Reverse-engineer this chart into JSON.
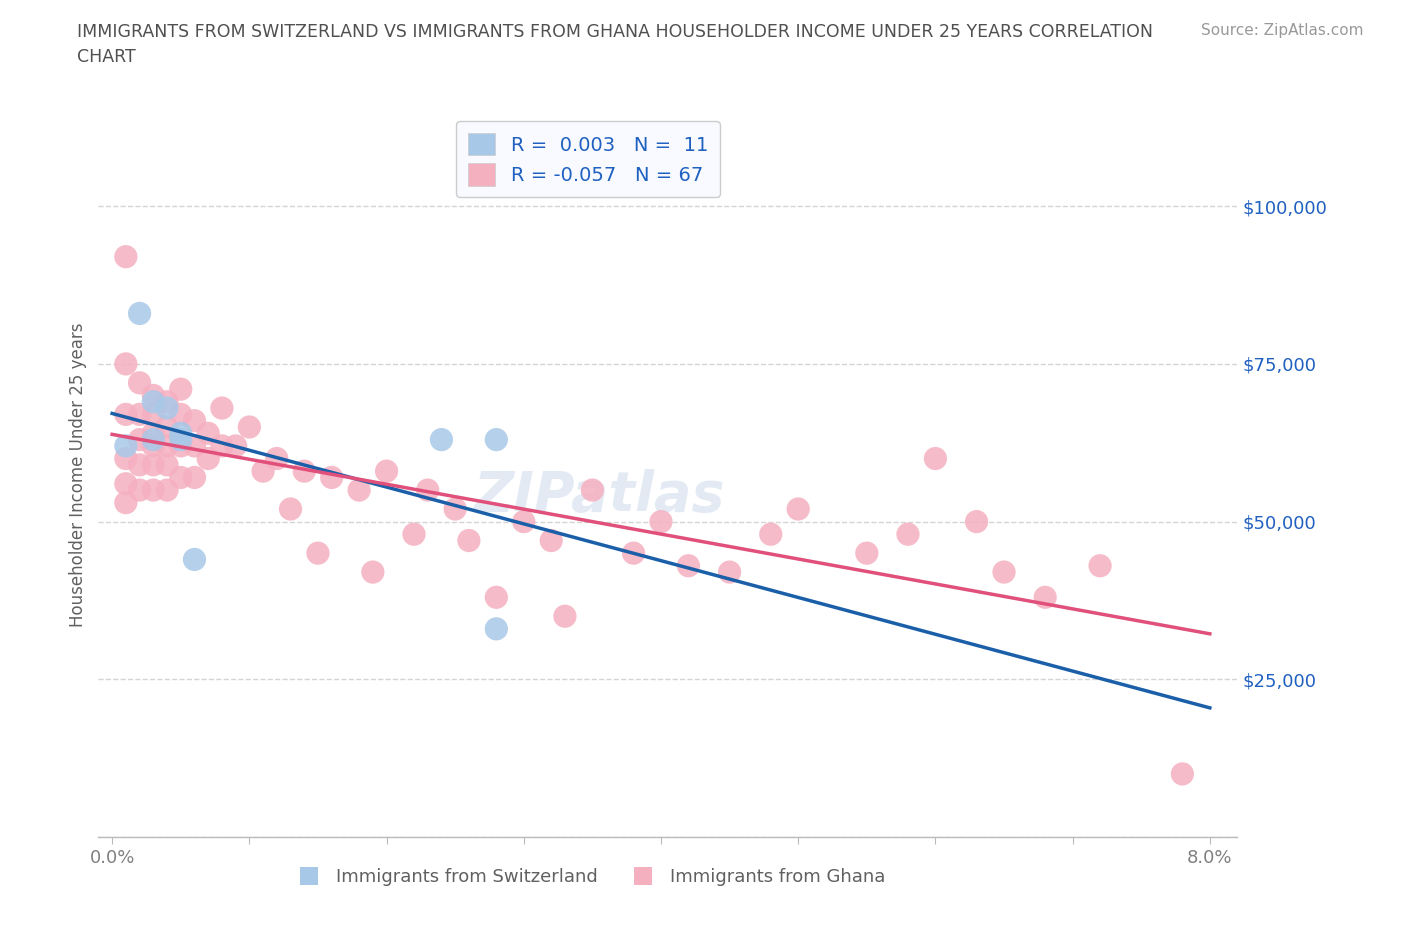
{
  "title_line1": "IMMIGRANTS FROM SWITZERLAND VS IMMIGRANTS FROM GHANA HOUSEHOLDER INCOME UNDER 25 YEARS CORRELATION",
  "title_line2": "CHART",
  "source": "Source: ZipAtlas.com",
  "ylabel": "Householder Income Under 25 years",
  "xlim": [
    -0.001,
    0.082
  ],
  "ylim": [
    0,
    115000
  ],
  "yticks": [
    0,
    25000,
    50000,
    75000,
    100000
  ],
  "ytick_labels": [
    "",
    "$25,000",
    "$50,000",
    "$75,000",
    "$100,000"
  ],
  "xticks": [
    0.0,
    0.01,
    0.02,
    0.03,
    0.04,
    0.05,
    0.06,
    0.07,
    0.08
  ],
  "xtick_labels": [
    "0.0%",
    "",
    "",
    "",
    "",
    "",
    "",
    "",
    "8.0%"
  ],
  "switzerland_color": "#a8c8e8",
  "ghana_color": "#f5b0c0",
  "switzerland_line_color": "#1a5fa8",
  "ghana_line_color": "#e0507a",
  "R_switzerland": 0.003,
  "N_switzerland": 11,
  "R_ghana": -0.057,
  "N_ghana": 67,
  "switzerland_x": [
    0.001,
    0.002,
    0.003,
    0.003,
    0.004,
    0.005,
    0.005,
    0.006,
    0.024,
    0.028,
    0.028
  ],
  "switzerland_y": [
    62000,
    83000,
    69000,
    63000,
    68000,
    64000,
    63000,
    44000,
    63000,
    63000,
    33000
  ],
  "ghana_x": [
    0.001,
    0.001,
    0.001,
    0.001,
    0.001,
    0.001,
    0.002,
    0.002,
    0.002,
    0.002,
    0.002,
    0.003,
    0.003,
    0.003,
    0.003,
    0.003,
    0.003,
    0.004,
    0.004,
    0.004,
    0.004,
    0.004,
    0.005,
    0.005,
    0.005,
    0.005,
    0.006,
    0.006,
    0.006,
    0.007,
    0.007,
    0.008,
    0.008,
    0.009,
    0.01,
    0.011,
    0.012,
    0.013,
    0.014,
    0.015,
    0.016,
    0.018,
    0.019,
    0.02,
    0.022,
    0.023,
    0.025,
    0.026,
    0.028,
    0.03,
    0.032,
    0.033,
    0.035,
    0.038,
    0.04,
    0.042,
    0.045,
    0.048,
    0.05,
    0.055,
    0.058,
    0.06,
    0.063,
    0.065,
    0.068,
    0.072,
    0.078
  ],
  "ghana_y": [
    92000,
    75000,
    67000,
    60000,
    56000,
    53000,
    72000,
    67000,
    63000,
    59000,
    55000,
    70000,
    67000,
    64000,
    62000,
    59000,
    55000,
    69000,
    65000,
    62000,
    59000,
    55000,
    71000,
    67000,
    62000,
    57000,
    66000,
    62000,
    57000,
    64000,
    60000,
    68000,
    62000,
    62000,
    65000,
    58000,
    60000,
    52000,
    58000,
    45000,
    57000,
    55000,
    42000,
    58000,
    48000,
    55000,
    52000,
    47000,
    38000,
    50000,
    47000,
    35000,
    55000,
    45000,
    50000,
    43000,
    42000,
    48000,
    52000,
    45000,
    48000,
    60000,
    50000,
    42000,
    38000,
    43000,
    10000
  ],
  "watermark": "ZIPatlas",
  "background_color": "#ffffff",
  "grid_color": "#d0d0d0",
  "stats_box_facecolor": "#f8faff",
  "stats_box_edgecolor": "#cccccc",
  "title_color": "#505050",
  "axis_label_color": "#606060",
  "tick_color_y": "#2060c0",
  "tick_color_x": "#808080",
  "legend_label_color": "#606060"
}
